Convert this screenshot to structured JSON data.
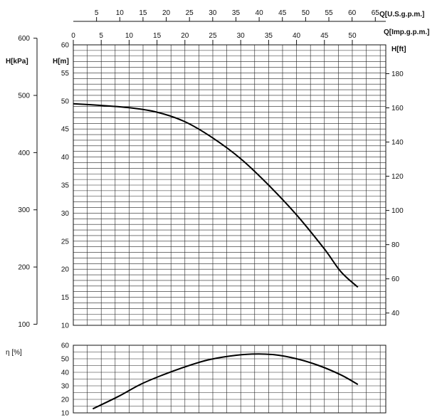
{
  "chart_data": [
    {
      "type": "line",
      "name": "head-curve",
      "x_axis_top_label": "Q[U.S.g.p.m.]",
      "x_axis_top_ticks": [
        5,
        10,
        15,
        20,
        25,
        30,
        35,
        40,
        45,
        50,
        55,
        60,
        65
      ],
      "x_axis_label": "Q[Imp.g.p.m.]",
      "x_axis_ticks": [
        0,
        5,
        10,
        15,
        20,
        25,
        30,
        35,
        40,
        45,
        50
      ],
      "xlim": [
        0,
        56
      ],
      "y_axis_label": "H[m]",
      "y_ticks": [
        10,
        15,
        20,
        25,
        30,
        35,
        40,
        45,
        50,
        55,
        60
      ],
      "ylim": [
        10,
        60
      ],
      "y_axis_kpa_label": "H[kPa]",
      "y_axis_kpa_ticks": [
        100,
        200,
        300,
        400,
        500,
        600
      ],
      "y_axis_ft_label": "H[ft]",
      "y_axis_ft_ticks": [
        40,
        60,
        80,
        100,
        120,
        140,
        160,
        180
      ],
      "grid": true,
      "series": [
        {
          "x": [
            0,
            5,
            10,
            15,
            20,
            25,
            30,
            35,
            40,
            45,
            48,
            51
          ],
          "y": [
            49.5,
            49.2,
            48.8,
            48.0,
            46.3,
            43.4,
            39.7,
            35.0,
            29.7,
            23.6,
            19.5,
            16.8
          ]
        }
      ]
    },
    {
      "type": "line",
      "name": "efficiency-curve",
      "y_axis_label": "η [%]",
      "y_ticks": [
        10,
        20,
        30,
        40,
        50,
        60
      ],
      "ylim": [
        10,
        60
      ],
      "xlim": [
        0,
        56
      ],
      "grid": true,
      "series": [
        {
          "x": [
            3.5,
            8,
            12,
            16,
            20,
            24,
            28,
            32,
            36,
            40,
            44,
            48,
            51
          ],
          "y": [
            13,
            22,
            31,
            38,
            44,
            49,
            52,
            53.5,
            53,
            50,
            45,
            38,
            31
          ]
        }
      ]
    }
  ]
}
